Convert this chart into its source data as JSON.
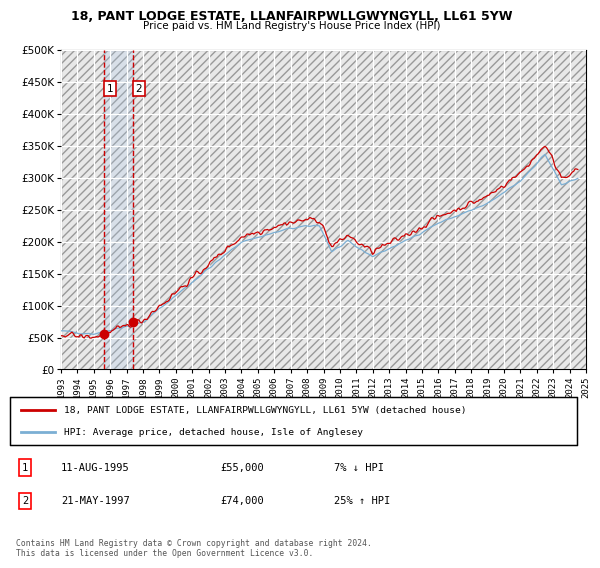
{
  "title1": "18, PANT LODGE ESTATE, LLANFAIRPWLLGWYNGYLL, LL61 5YW",
  "title2": "Price paid vs. HM Land Registry's House Price Index (HPI)",
  "ylim": [
    0,
    500000
  ],
  "yticks": [
    0,
    50000,
    100000,
    150000,
    200000,
    250000,
    300000,
    350000,
    400000,
    450000,
    500000
  ],
  "ytick_labels": [
    "£0",
    "£50K",
    "£100K",
    "£150K",
    "£200K",
    "£250K",
    "£300K",
    "£350K",
    "£400K",
    "£450K",
    "£500K"
  ],
  "hpi_color": "#7bafd4",
  "price_color": "#cc0000",
  "sale1_year": 1995.62,
  "sale1_price": 55000,
  "sale2_year": 1997.38,
  "sale2_price": 74000,
  "legend_label1": "18, PANT LODGE ESTATE, LLANFAIRPWLLGWYNGYLL, LL61 5YW (detached house)",
  "legend_label2": "HPI: Average price, detached house, Isle of Anglesey",
  "table_row1": [
    "1",
    "11-AUG-1995",
    "£55,000",
    "7% ↓ HPI"
  ],
  "table_row2": [
    "2",
    "21-MAY-1997",
    "£74,000",
    "25% ↑ HPI"
  ],
  "footer": "Contains HM Land Registry data © Crown copyright and database right 2024.\nThis data is licensed under the Open Government Licence v3.0.",
  "xmin": 1993,
  "xmax": 2025
}
